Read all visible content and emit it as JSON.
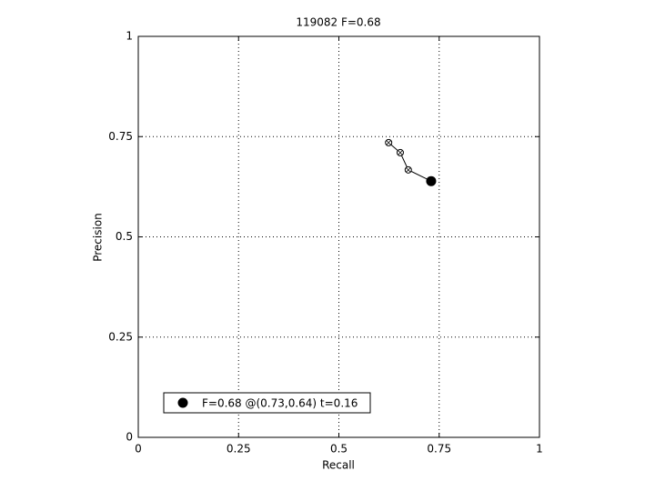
{
  "chart_data": {
    "type": "line",
    "title": "119082 F=0.68",
    "xlabel": "Recall",
    "ylabel": "Precision",
    "xlim": [
      0,
      1
    ],
    "ylim": [
      0,
      1
    ],
    "xticks": [
      0,
      0.25,
      0.5,
      0.75,
      1
    ],
    "yticks": [
      0,
      0.25,
      0.5,
      0.75,
      1
    ],
    "grid": true,
    "series": [
      {
        "color": "#000000",
        "x": [
          0.624,
          0.653,
          0.673,
          0.73
        ],
        "values": [
          0.735,
          0.71,
          0.667,
          0.639
        ]
      }
    ],
    "best": {
      "name": "F=0.68 @(0.73,0.64) t=0.16",
      "x": 0.73,
      "y": 0.639,
      "color": "#000000"
    },
    "legend": "lower left"
  }
}
